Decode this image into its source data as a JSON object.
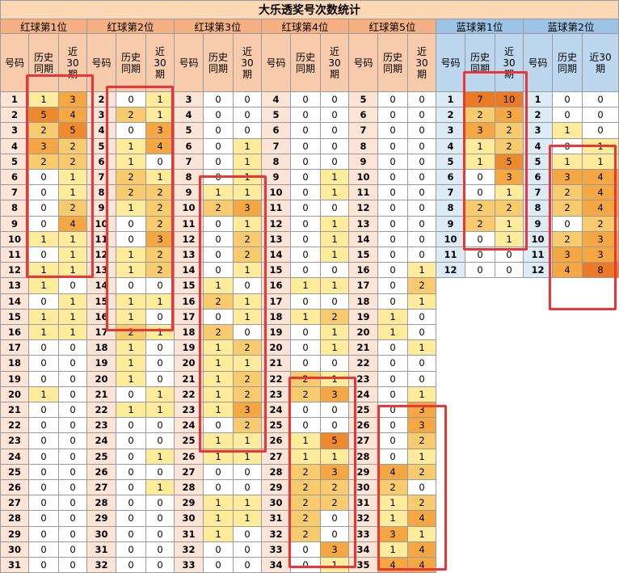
{
  "chart_data": {
    "type": "table",
    "title": "大乐透奖号次数统计",
    "column_headers": [
      "号码",
      "历史同期",
      "近30期"
    ],
    "colors": {
      "red_header": "#f5b183",
      "red_subheader": "#f8cbad",
      "red_number_bg": "#fce4d6",
      "blue_header": "#9dc3e6",
      "blue_subheader": "#bdd7ee",
      "blue_number_bg": "#ddebf7",
      "title_bg": "#fbd7b5",
      "highlight_box": "#ee3434",
      "heat_0": "#ffffff",
      "heat_1": "#ffeb9c",
      "heat_2": "#f8cb6e",
      "heat_3": "#f4a742",
      "heat_4": "#f4a742",
      "heat_5": "#ed8a2e",
      "heat_high": "#ea7a26"
    },
    "groups": [
      {
        "name": "红球第1位",
        "kind": "red",
        "numbers": [
          1,
          2,
          3,
          4,
          5,
          6,
          7,
          8,
          9,
          10,
          11,
          12,
          13,
          14,
          15,
          16,
          17,
          18,
          19,
          20,
          21,
          22,
          23,
          24,
          25,
          26,
          27,
          28,
          29,
          30,
          31
        ],
        "history": [
          1,
          5,
          2,
          3,
          2,
          0,
          0,
          0,
          0,
          1,
          0,
          1,
          1,
          0,
          1,
          1,
          0,
          0,
          0,
          1,
          0,
          0,
          0,
          0,
          0,
          0,
          0,
          0,
          0,
          0,
          0
        ],
        "recent30": [
          3,
          4,
          5,
          2,
          2,
          1,
          1,
          2,
          4,
          1,
          1,
          1,
          0,
          1,
          1,
          1,
          0,
          0,
          0,
          0,
          0,
          0,
          0,
          0,
          0,
          0,
          0,
          0,
          0,
          0,
          0
        ]
      },
      {
        "name": "红球第2位",
        "kind": "red",
        "numbers": [
          2,
          3,
          4,
          5,
          6,
          7,
          8,
          9,
          10,
          11,
          12,
          13,
          14,
          15,
          16,
          17,
          18,
          19,
          20,
          21,
          22,
          23,
          24,
          25,
          26,
          27,
          28,
          29,
          30,
          31,
          32
        ],
        "history": [
          0,
          2,
          0,
          1,
          1,
          2,
          2,
          1,
          0,
          0,
          1,
          1,
          0,
          1,
          1,
          2,
          1,
          1,
          1,
          0,
          1,
          0,
          0,
          0,
          0,
          0,
          0,
          0,
          0,
          0,
          0
        ],
        "recent30": [
          1,
          1,
          3,
          4,
          0,
          1,
          2,
          2,
          2,
          3,
          2,
          2,
          0,
          1,
          0,
          1,
          0,
          0,
          0,
          1,
          1,
          0,
          0,
          1,
          0,
          1,
          0,
          0,
          0,
          0,
          0
        ]
      },
      {
        "name": "红球第3位",
        "kind": "red",
        "numbers": [
          3,
          4,
          5,
          6,
          7,
          8,
          9,
          10,
          11,
          12,
          13,
          14,
          15,
          16,
          17,
          18,
          19,
          20,
          21,
          22,
          23,
          24,
          25,
          26,
          27,
          28,
          29,
          30,
          31,
          32,
          33
        ],
        "history": [
          0,
          0,
          0,
          0,
          0,
          0,
          1,
          2,
          0,
          0,
          0,
          0,
          1,
          2,
          0,
          2,
          1,
          1,
          1,
          1,
          1,
          0,
          1,
          1,
          0,
          0,
          1,
          1,
          1,
          0,
          0
        ],
        "recent30": [
          0,
          0,
          0,
          1,
          1,
          1,
          1,
          3,
          1,
          2,
          2,
          1,
          0,
          1,
          1,
          0,
          2,
          1,
          2,
          2,
          3,
          2,
          1,
          1,
          0,
          0,
          1,
          1,
          0,
          0,
          0
        ]
      },
      {
        "name": "红球第4位",
        "kind": "red",
        "numbers": [
          4,
          5,
          6,
          7,
          8,
          9,
          10,
          11,
          12,
          13,
          14,
          15,
          16,
          17,
          18,
          19,
          20,
          21,
          22,
          23,
          24,
          25,
          26,
          27,
          28,
          29,
          30,
          31,
          32,
          33,
          34
        ],
        "history": [
          0,
          0,
          0,
          0,
          0,
          0,
          0,
          0,
          0,
          0,
          0,
          0,
          1,
          0,
          1,
          0,
          0,
          0,
          2,
          2,
          0,
          0,
          1,
          1,
          2,
          2,
          2,
          2,
          2,
          0,
          0
        ],
        "recent30": [
          0,
          0,
          0,
          0,
          0,
          1,
          1,
          0,
          1,
          1,
          1,
          0,
          1,
          0,
          2,
          1,
          1,
          0,
          1,
          3,
          0,
          0,
          5,
          1,
          3,
          2,
          2,
          0,
          0,
          3,
          1
        ]
      },
      {
        "name": "红球第5位",
        "kind": "red",
        "numbers": [
          5,
          6,
          7,
          8,
          9,
          10,
          11,
          12,
          13,
          14,
          15,
          16,
          17,
          18,
          19,
          20,
          21,
          22,
          23,
          24,
          25,
          26,
          27,
          28,
          29,
          30,
          31,
          32,
          33,
          34,
          35
        ],
        "history": [
          0,
          0,
          0,
          0,
          0,
          0,
          0,
          0,
          0,
          0,
          0,
          0,
          0,
          0,
          1,
          1,
          0,
          0,
          0,
          0,
          0,
          0,
          0,
          0,
          4,
          2,
          1,
          1,
          3,
          1,
          4
        ],
        "recent30": [
          0,
          0,
          0,
          0,
          0,
          0,
          0,
          0,
          0,
          0,
          0,
          1,
          2,
          1,
          0,
          0,
          1,
          0,
          0,
          1,
          3,
          3,
          2,
          1,
          2,
          0,
          2,
          4,
          1,
          4,
          4
        ]
      },
      {
        "name": "蓝球第1位",
        "kind": "blue",
        "numbers": [
          1,
          2,
          3,
          4,
          5,
          6,
          7,
          8,
          9,
          10,
          11,
          12
        ],
        "history": [
          7,
          2,
          3,
          1,
          1,
          0,
          0,
          2,
          2,
          0,
          0,
          0
        ],
        "recent30": [
          10,
          3,
          2,
          2,
          5,
          3,
          1,
          2,
          1,
          1,
          0,
          0
        ]
      },
      {
        "name": "蓝球第2位",
        "kind": "blue",
        "numbers": [
          1,
          2,
          3,
          4,
          5,
          6,
          7,
          8,
          9,
          10,
          11,
          12
        ],
        "history": [
          0,
          0,
          1,
          0,
          1,
          3,
          2,
          2,
          0,
          2,
          3,
          4
        ],
        "recent30": [
          0,
          0,
          0,
          1,
          1,
          4,
          4,
          4,
          2,
          3,
          3,
          8
        ]
      }
    ]
  }
}
